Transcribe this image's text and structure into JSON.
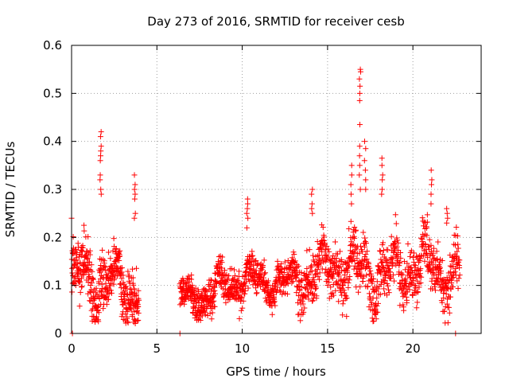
{
  "chart_data": {
    "type": "scatter",
    "title": "Day 273 of 2016, SRMTID for receiver cesb",
    "xlabel": "GPS time / hours",
    "ylabel": "SRMTID / TECUs",
    "xlim": [
      0,
      24
    ],
    "ylim": [
      0,
      0.6
    ],
    "xticks": [
      0,
      5,
      10,
      15,
      20
    ],
    "yticks": [
      0,
      0.1,
      0.2,
      0.3,
      0.4,
      0.5,
      0.6
    ],
    "grid": true,
    "marker": "+",
    "color": "#ff0000",
    "segments": [
      {
        "start": 0.0,
        "end": 3.95,
        "base": 0.105,
        "amp": 0.075,
        "spread": 0.06,
        "n": 420
      },
      {
        "start": 6.35,
        "end": 8.4,
        "base": 0.075,
        "amp": 0.03,
        "spread": 0.035,
        "n": 210
      },
      {
        "start": 8.4,
        "end": 13.0,
        "base": 0.105,
        "amp": 0.04,
        "spread": 0.035,
        "n": 420
      },
      {
        "start": 13.0,
        "end": 22.75,
        "base": 0.13,
        "amp": 0.07,
        "spread": 0.055,
        "n": 880
      }
    ],
    "spikes": [
      {
        "x": 1.7,
        "values": [
          0.42,
          0.41,
          0.39,
          0.38,
          0.37,
          0.36,
          0.33,
          0.32,
          0.3,
          0.29
        ]
      },
      {
        "x": 3.7,
        "values": [
          0.33,
          0.31,
          0.3,
          0.29,
          0.28,
          0.25,
          0.24
        ]
      },
      {
        "x": 10.3,
        "values": [
          0.28,
          0.27,
          0.26,
          0.25,
          0.24,
          0.22
        ]
      },
      {
        "x": 14.1,
        "values": [
          0.3,
          0.29,
          0.27,
          0.26,
          0.25
        ]
      },
      {
        "x": 16.9,
        "values": [
          0.55,
          0.545,
          0.53,
          0.515,
          0.5,
          0.485,
          0.435,
          0.39,
          0.37,
          0.35,
          0.33,
          0.3
        ]
      },
      {
        "x": 17.2,
        "values": [
          0.4,
          0.385,
          0.36,
          0.34,
          0.32,
          0.3
        ]
      },
      {
        "x": 16.4,
        "values": [
          0.35,
          0.33,
          0.31,
          0.29,
          0.27
        ]
      },
      {
        "x": 18.2,
        "values": [
          0.365,
          0.35,
          0.33,
          0.32,
          0.3,
          0.29
        ]
      },
      {
        "x": 21.1,
        "values": [
          0.34,
          0.32,
          0.31,
          0.29,
          0.27
        ]
      },
      {
        "x": 22.0,
        "values": [
          0.26,
          0.25,
          0.24,
          0.23
        ]
      }
    ],
    "edge_points": [
      {
        "x": 0.0,
        "y": 0.24
      },
      {
        "x": 0.05,
        "y": 0.0
      },
      {
        "x": 6.35,
        "y": 0.0
      },
      {
        "x": 22.5,
        "y": 0.0
      }
    ]
  }
}
